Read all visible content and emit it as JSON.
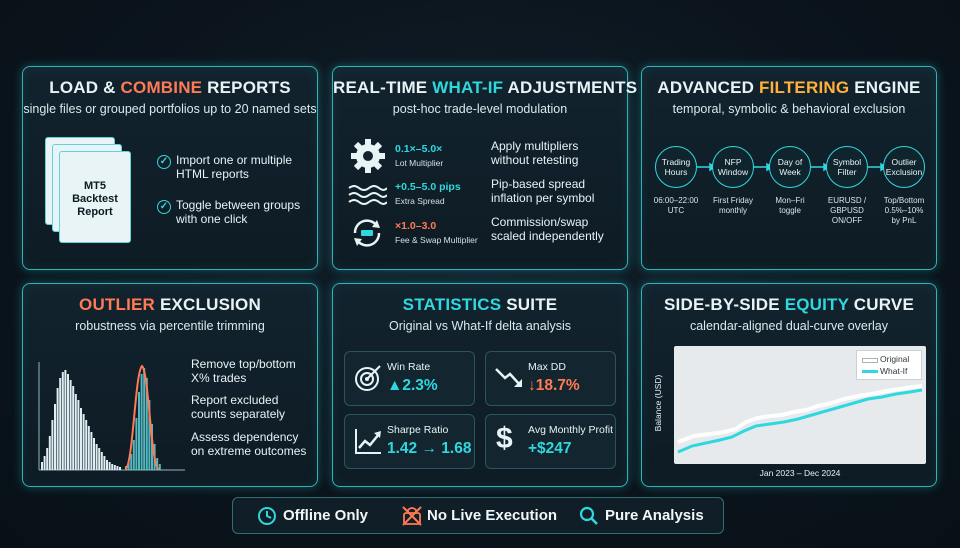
{
  "panels": {
    "load": {
      "title_a": "LOAD & ",
      "title_hl": "COMBINE",
      "title_b": " REPORTS",
      "subtitle": "single files or grouped portfolios up to 20 named sets",
      "report_label": [
        "MT5",
        "Backtest",
        "Report"
      ],
      "bullets": [
        {
          "line1": "Import one or multiple",
          "line2": "HTML reports"
        },
        {
          "line1": "Toggle between groups",
          "line2": "with one click"
        }
      ]
    },
    "whatif": {
      "title_a": "REAL-TIME ",
      "title_hl": "WHAT-IF",
      "title_b": " ADJUSTMENTS",
      "subtitle": "post-hoc trade-level modulation",
      "rows": [
        {
          "value": "0.1×–5.0×",
          "name": "Lot Multiplier",
          "desc1": "Apply multipliers",
          "desc2": "without retesting",
          "icon": "gear-icon"
        },
        {
          "value": "+0.5–5.0 pips",
          "name": "Extra Spread",
          "desc1": "Pip-based spread",
          "desc2": "inflation per symbol",
          "icon": "waves-icon"
        },
        {
          "value": "×1.0–3.0",
          "name": "Fee & Swap Multiplier",
          "desc1": "Commission/swap",
          "desc2": "scaled independently",
          "icon": "swap-cycle-icon"
        }
      ]
    },
    "filter": {
      "title_a": "ADVANCED ",
      "title_hl": "FILTERING",
      "title_b": " ENGINE",
      "subtitle": "temporal, symbolic & behavioral exclusion",
      "nodes": [
        {
          "name": [
            "Trading",
            "Hours"
          ],
          "detail": [
            "06:00–22:00",
            "UTC"
          ]
        },
        {
          "name": [
            "NFP",
            "Window"
          ],
          "detail": [
            "First Friday",
            "monthly"
          ]
        },
        {
          "name": [
            "Day of",
            "Week"
          ],
          "detail": [
            "Mon–Fri",
            "toggle"
          ]
        },
        {
          "name": [
            "Symbol",
            "Filter"
          ],
          "detail": [
            "EURUSD /",
            "GBPUSD",
            "ON/OFF"
          ]
        },
        {
          "name": [
            "Outlier",
            "Exclusion"
          ],
          "detail": [
            "Top/Bottom",
            "0.5%–10%",
            "by PnL"
          ]
        }
      ]
    },
    "outlier": {
      "title_hl": "OUTLIER",
      "title_b": " EXCLUSION",
      "subtitle": "robustness via percentile trimming",
      "bullets": [
        {
          "line1": "Remove top/bottom",
          "line2": "X% trades"
        },
        {
          "line1": "Report excluded",
          "line2": "counts separately"
        },
        {
          "line1": "Assess dependency",
          "line2": "on extreme outcomes"
        }
      ]
    },
    "stats": {
      "title_hl": "STATISTICS",
      "title_b": " SUITE",
      "subtitle": "Original vs What-If delta analysis",
      "cards": [
        {
          "label": "Win Rate",
          "value": "▲2.3%",
          "icon": "target-icon",
          "tone": "#2fd8de"
        },
        {
          "label": "Max DD",
          "value": "↓18.7%",
          "icon": "trend-down-icon",
          "tone": "#ff7a55"
        },
        {
          "label": "Sharpe Ratio",
          "value": "1.42 → 1.68",
          "icon": "trend-up-icon",
          "tone": "#2fd8de"
        },
        {
          "label": "Avg Monthly Profit",
          "value": "+$247",
          "icon": "dollar-icon",
          "tone": "#2fd8de"
        }
      ]
    },
    "equity": {
      "title_a": "SIDE-BY-SIDE ",
      "title_hl": "EQUITY",
      "title_b": " CURVE",
      "subtitle": "calendar-aligned dual-curve overlay",
      "legend": [
        "Original",
        "What-If"
      ],
      "ylabel": "Balance (USD)",
      "xlabel": "Jan 2023 – Dec 2024"
    }
  },
  "footer": {
    "items": [
      {
        "label": "Offline Only",
        "icon": "clock-icon"
      },
      {
        "label": "No Live Execution",
        "icon": "no-execution-icon"
      },
      {
        "label": "Pure Analysis",
        "icon": "magnifier-icon"
      }
    ]
  },
  "colors": {
    "accent_cyan": "#2fd8de",
    "accent_orange": "#ff7a55",
    "accent_yellow": "#ffb13b",
    "panel_border": "#2fb3b8"
  }
}
